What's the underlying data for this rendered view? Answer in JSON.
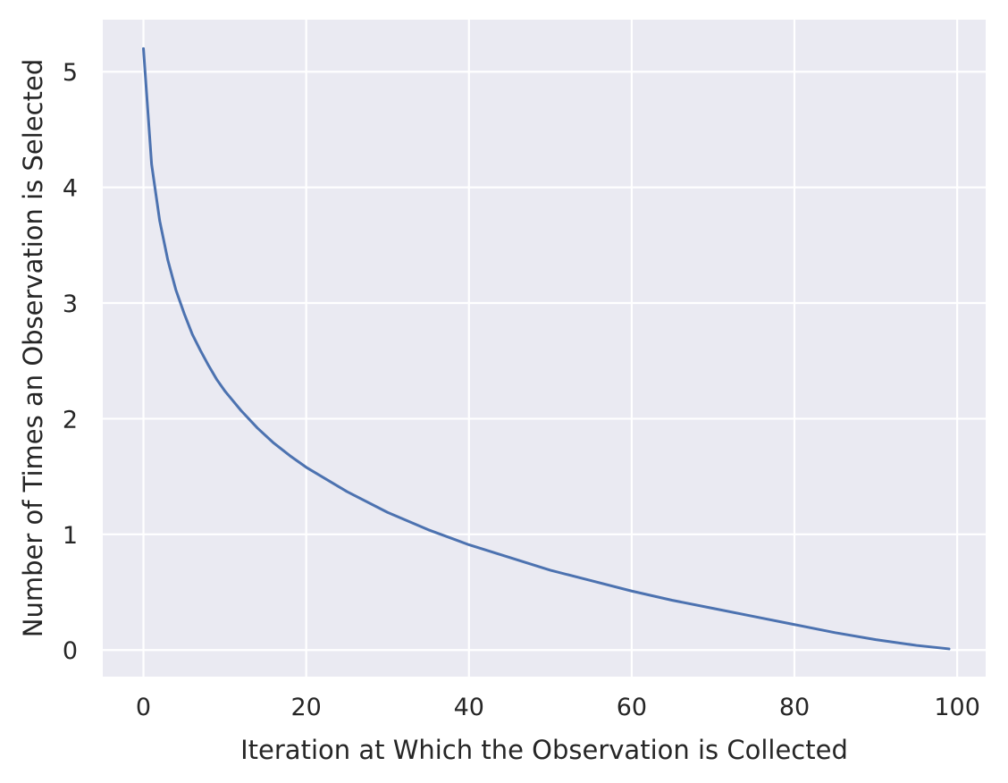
{
  "chart_data": {
    "type": "line",
    "title": "",
    "xlabel": "Iteration at Which the Observation is Collected",
    "ylabel": "Number of Times an Observation is Selected",
    "xlim": [
      -5,
      103.5
    ],
    "ylim": [
      -0.23,
      5.45
    ],
    "x_ticks": [
      0,
      20,
      40,
      60,
      80,
      100
    ],
    "x_tick_labels": [
      "0",
      "20",
      "40",
      "60",
      "80",
      "100"
    ],
    "y_ticks": [
      0,
      1,
      2,
      3,
      4,
      5
    ],
    "y_tick_labels": [
      "0",
      "1",
      "2",
      "3",
      "4",
      "5"
    ],
    "grid": true,
    "background_color": "#eaeaf2",
    "grid_color": "#ffffff",
    "series": [
      {
        "color": "#4c72b0",
        "x": [
          0,
          1,
          2,
          3,
          4,
          5,
          6,
          7,
          8,
          9,
          10,
          12,
          14,
          16,
          18,
          20,
          25,
          30,
          35,
          40,
          45,
          50,
          55,
          60,
          65,
          70,
          75,
          80,
          85,
          90,
          95,
          99
        ],
        "y": [
          5.2,
          4.2,
          3.71,
          3.37,
          3.11,
          2.91,
          2.73,
          2.59,
          2.46,
          2.34,
          2.24,
          2.07,
          1.92,
          1.79,
          1.68,
          1.58,
          1.37,
          1.19,
          1.04,
          0.91,
          0.8,
          0.69,
          0.6,
          0.51,
          0.43,
          0.36,
          0.29,
          0.22,
          0.15,
          0.09,
          0.04,
          0.01
        ]
      }
    ]
  }
}
